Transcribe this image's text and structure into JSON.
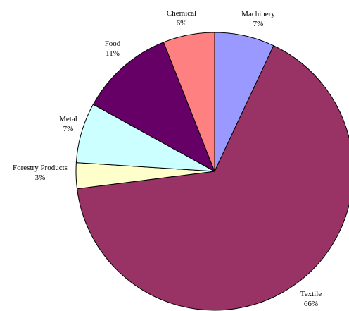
{
  "chart_data": {
    "type": "pie",
    "start_angle_deg": 0,
    "direction": "clockwise",
    "legend": "none",
    "slices": [
      {
        "label": "Machinery",
        "value": 7,
        "pct_label": "7%",
        "color": "#9999ff"
      },
      {
        "label": "Textile",
        "value": 66,
        "pct_label": "66%",
        "color": "#993366"
      },
      {
        "label": "Forestry Products",
        "value": 3,
        "pct_label": "3%",
        "color": "#ffffcc"
      },
      {
        "label": "Metal",
        "value": 7,
        "pct_label": "7%",
        "color": "#ccffff"
      },
      {
        "label": "Food",
        "value": 11,
        "pct_label": "11%",
        "color": "#660066"
      },
      {
        "label": "Chemical",
        "value": 6,
        "pct_label": "6%",
        "color": "#ff8080"
      }
    ]
  }
}
